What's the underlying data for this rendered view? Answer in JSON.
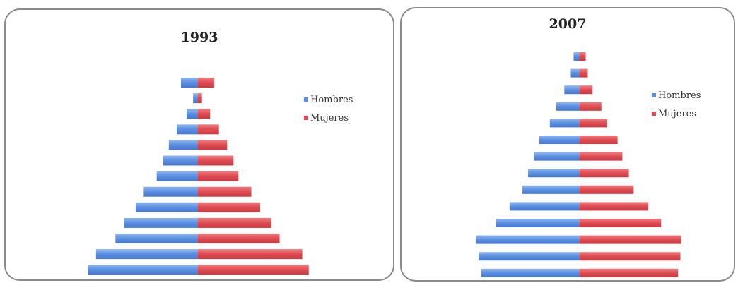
{
  "chart_data": [
    {
      "type": "bar",
      "orientation": "horizontal",
      "stacked_diverging": true,
      "title": "1993",
      "legend_position": "right",
      "grid": false,
      "series": [
        {
          "name": "Hombres",
          "color": "#5b8fe0",
          "values": [
            4.2,
            1.2,
            2.8,
            5.2,
            7.2,
            8.6,
            10.2,
            13.4,
            15.4,
            18.2,
            20.4,
            25.2,
            27.2,
            30.2
          ]
        },
        {
          "name": "Mujeres",
          "color": "#df4b52",
          "values": [
            4.0,
            1.0,
            3.0,
            5.2,
            7.2,
            8.8,
            10.0,
            13.2,
            15.4,
            18.2,
            20.2,
            25.8,
            27.4,
            29.4
          ]
        }
      ],
      "xlim": [
        -32,
        32
      ]
    },
    {
      "type": "bar",
      "orientation": "horizontal",
      "stacked_diverging": true,
      "title": "2007",
      "legend_position": "right",
      "grid": false,
      "series": [
        {
          "name": "Hombres",
          "color": "#5b8fe0",
          "values": [
            1.5,
            2.2,
            3.8,
            5.8,
            7.4,
            10.0,
            11.4,
            12.8,
            14.2,
            17.4,
            20.8,
            25.8,
            25.0,
            24.4
          ]
        },
        {
          "name": "Mujeres",
          "color": "#df4b52",
          "values": [
            1.5,
            2.0,
            3.2,
            5.4,
            6.8,
            9.4,
            10.6,
            12.2,
            13.4,
            17.0,
            20.2,
            25.2,
            25.0,
            24.4
          ]
        }
      ],
      "xlim": [
        -28,
        28
      ]
    }
  ]
}
